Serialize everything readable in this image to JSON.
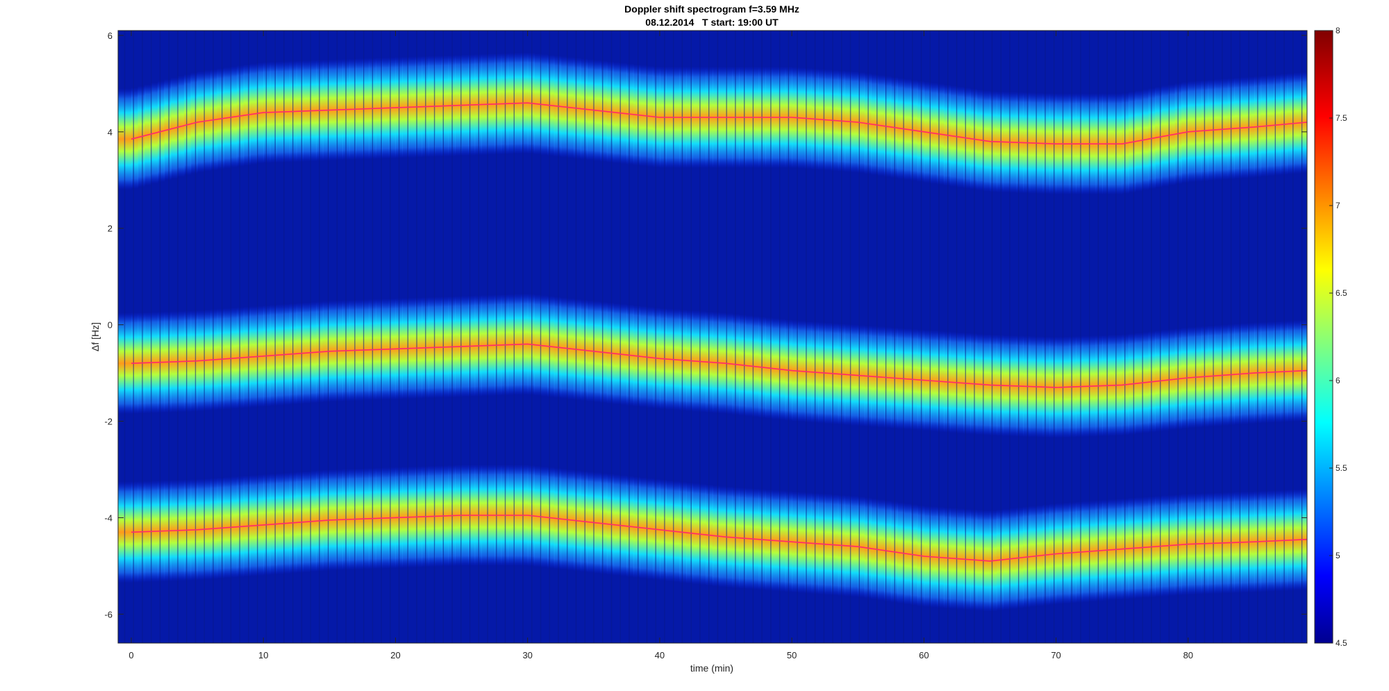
{
  "chart_data": {
    "type": "heatmap",
    "title": "Doppler shift spectrogram f=3.59 MHz",
    "subtitle": "08.12.2014   T start: 19:00 UT",
    "xlabel": "time (min)",
    "ylabel": "Δf [Hz]",
    "xlim": [
      -1,
      89
    ],
    "ylim": [
      -6.6,
      6.1
    ],
    "xticks": [
      0,
      10,
      20,
      30,
      40,
      50,
      60,
      70,
      80
    ],
    "yticks": [
      -6,
      -4,
      -2,
      0,
      2,
      4,
      6
    ],
    "colorbar": {
      "colormap": "jet",
      "clim": [
        4.5,
        8
      ],
      "ticks": [
        "4.5",
        "5",
        "5.5",
        "6",
        "6.5",
        "7",
        "7.5",
        "8"
      ]
    },
    "series": [
      {
        "x": [
          0,
          5,
          10,
          15,
          20,
          25,
          30,
          35,
          40,
          45,
          50,
          55,
          60,
          65,
          70,
          75,
          80,
          85,
          89
        ],
        "values": [
          3.85,
          4.2,
          4.4,
          4.45,
          4.5,
          4.55,
          4.6,
          4.45,
          4.3,
          4.3,
          4.3,
          4.2,
          4.0,
          3.8,
          3.75,
          3.75,
          4.0,
          4.1,
          4.2
        ]
      },
      {
        "x": [
          0,
          5,
          10,
          15,
          20,
          25,
          30,
          35,
          40,
          45,
          50,
          55,
          60,
          65,
          70,
          75,
          80,
          85,
          89
        ],
        "values": [
          -0.8,
          -0.75,
          -0.65,
          -0.55,
          -0.5,
          -0.45,
          -0.4,
          -0.55,
          -0.7,
          -0.8,
          -0.95,
          -1.05,
          -1.15,
          -1.25,
          -1.3,
          -1.25,
          -1.1,
          -1.0,
          -0.95
        ]
      },
      {
        "x": [
          0,
          5,
          10,
          15,
          20,
          25,
          30,
          35,
          40,
          45,
          50,
          55,
          60,
          65,
          70,
          75,
          80,
          85,
          89
        ],
        "values": [
          -4.3,
          -4.25,
          -4.15,
          -4.05,
          -4.0,
          -3.95,
          -3.95,
          -4.1,
          -4.25,
          -4.4,
          -4.5,
          -4.6,
          -4.8,
          -4.9,
          -4.75,
          -4.65,
          -4.55,
          -4.5,
          -4.45
        ]
      }
    ]
  }
}
